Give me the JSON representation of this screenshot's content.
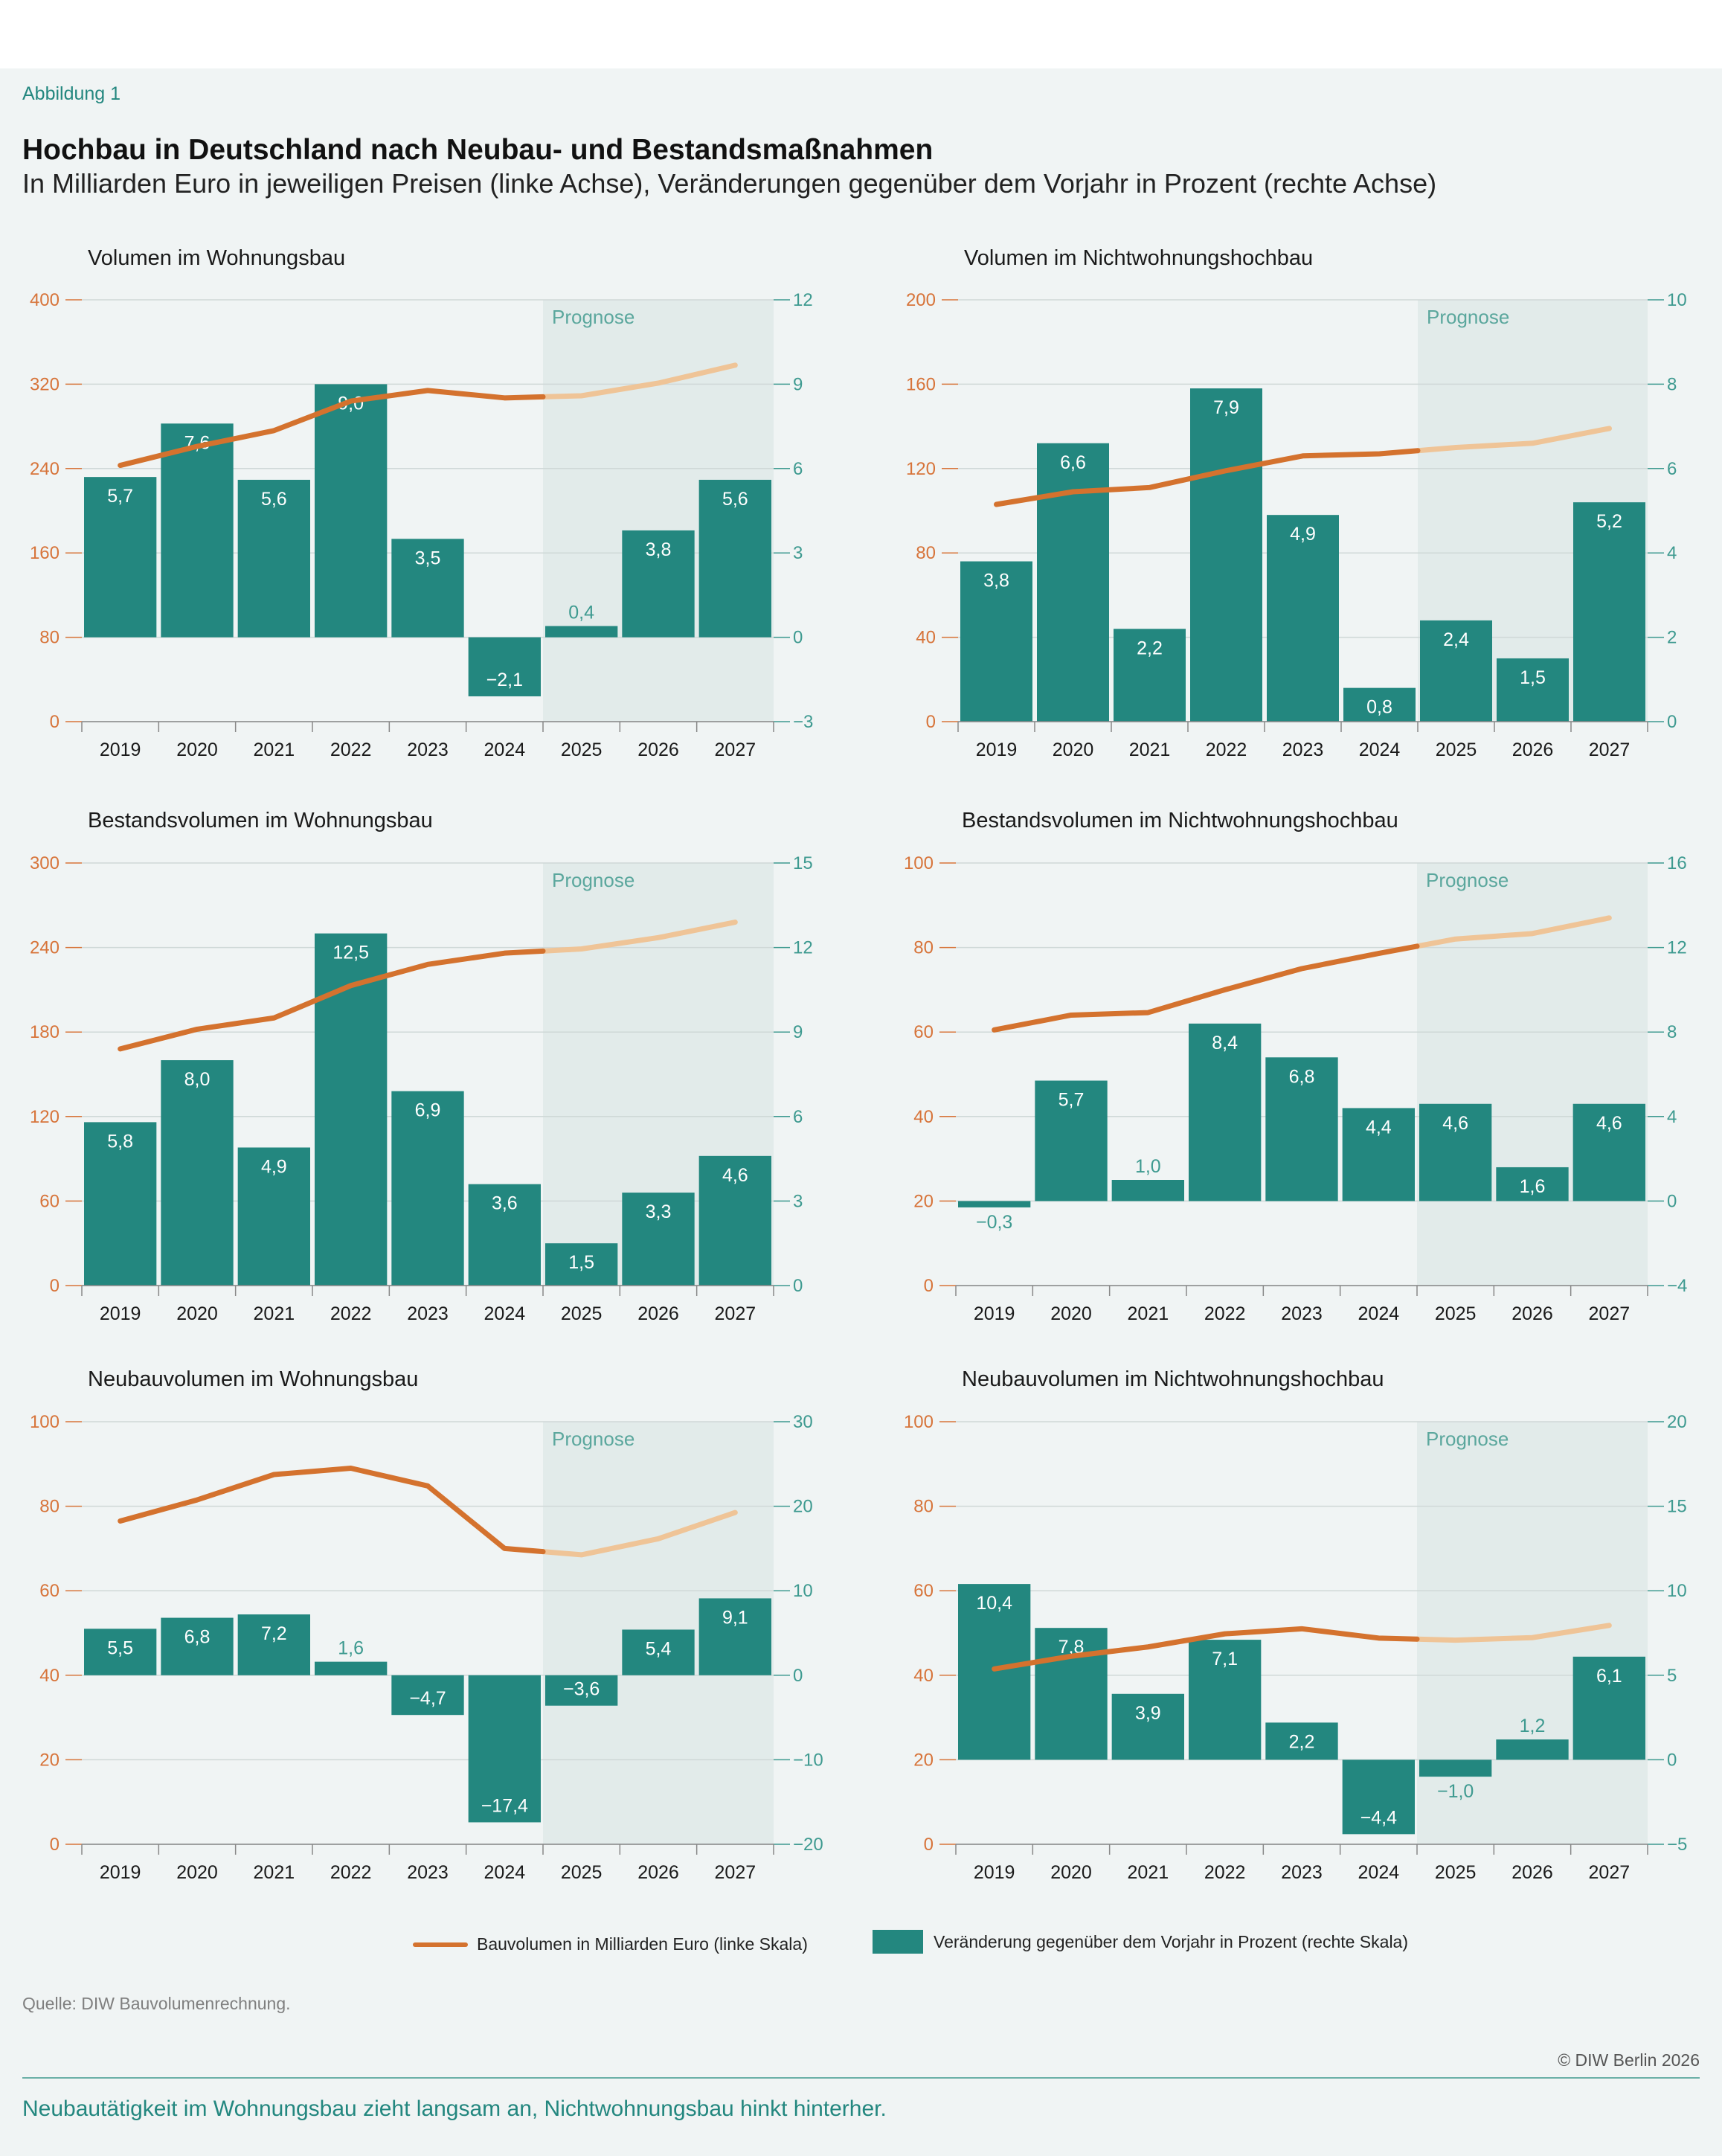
{
  "figure_label": "Abbildung 1",
  "title": "Hochbau in Deutschland nach Neubau- und Bestandsmaßnahmen",
  "subtitle": "In Milliarden Euro in jeweiligen Preisen (linke Achse), Veränderungen gegenüber dem Vorjahr in Prozent (rechte Achse)",
  "forecast_label": "Prognose",
  "legend": {
    "line_label": "Bauvolumen in Milliarden Euro (linke Skala)",
    "bar_label": "Veränderung gegenüber dem Vorjahr in Prozent (rechte Skala)"
  },
  "source": "Quelle: DIW Bauvolumenrechnung.",
  "copyright": "© DIW Berlin 2026",
  "footer": "Neubautätigkeit im Wohnungsbau zieht langsam an, Nichtwohnungsbau hinkt hinterher.",
  "colors": {
    "bar": "#23877f",
    "line": "#d4722e",
    "line_forecast": "#efc497",
    "forecast_bg": "#e2ebea",
    "left_axis": "#d7743a",
    "right_axis": "#3e9a90"
  },
  "chart_data": [
    {
      "type": "bar",
      "title": "Volumen im Wohnungsbau",
      "categories": [
        "2019",
        "2020",
        "2021",
        "2022",
        "2023",
        "2024",
        "2025",
        "2026",
        "2027"
      ],
      "forecast_from": "2025",
      "left_axis": {
        "min": 0,
        "max": 400,
        "ticks": [
          0,
          80,
          160,
          240,
          320,
          400
        ]
      },
      "right_axis": {
        "min": -3,
        "max": 12,
        "ticks": [
          -3,
          0,
          3,
          6,
          9,
          12
        ]
      },
      "bar_labels": [
        "5,7",
        "7,6",
        "5,6",
        "9,0",
        "3,5",
        "−2,1",
        "0,4",
        "3,8",
        "5,6"
      ],
      "series": [
        {
          "name": "Veränderung gegenüber dem Vorjahr in Prozent (rechte Skala)",
          "axis": "right",
          "kind": "bar",
          "values": [
            5.7,
            7.6,
            5.6,
            9.0,
            3.5,
            -2.1,
            0.4,
            3.8,
            5.6
          ]
        },
        {
          "name": "Bauvolumen in Milliarden Euro (linke Skala)",
          "axis": "left",
          "kind": "line",
          "values": [
            243,
            261,
            276,
            304,
            314,
            307,
            309,
            321,
            338
          ]
        }
      ]
    },
    {
      "type": "bar",
      "title": "Volumen im Nichtwohnungshochbau",
      "categories": [
        "2019",
        "2020",
        "2021",
        "2022",
        "2023",
        "2024",
        "2025",
        "2026",
        "2027"
      ],
      "forecast_from": "2025",
      "left_axis": {
        "min": 0,
        "max": 200,
        "ticks": [
          0,
          40,
          80,
          120,
          160,
          200
        ]
      },
      "right_axis": {
        "min": 0,
        "max": 10,
        "ticks": [
          0,
          2,
          4,
          6,
          8,
          10
        ]
      },
      "bar_labels": [
        "3,8",
        "6,6",
        "2,2",
        "7,9",
        "4,9",
        "0,8",
        "2,4",
        "1,5",
        "5,2"
      ],
      "series": [
        {
          "name": "Veränderung gegenüber dem Vorjahr in Prozent (rechte Skala)",
          "axis": "right",
          "kind": "bar",
          "values": [
            3.8,
            6.6,
            2.2,
            7.9,
            4.9,
            0.8,
            2.4,
            1.5,
            5.2
          ]
        },
        {
          "name": "Bauvolumen in Milliarden Euro (linke Skala)",
          "axis": "left",
          "kind": "line",
          "values": [
            103,
            109,
            111,
            119,
            126,
            127,
            130,
            132,
            139
          ]
        }
      ]
    },
    {
      "type": "bar",
      "title": "Bestandsvolumen im Wohnungsbau",
      "categories": [
        "2019",
        "2020",
        "2021",
        "2022",
        "2023",
        "2024",
        "2025",
        "2026",
        "2027"
      ],
      "forecast_from": "2025",
      "left_axis": {
        "min": 0,
        "max": 300,
        "ticks": [
          0,
          60,
          120,
          180,
          240,
          300
        ]
      },
      "right_axis": {
        "min": 0,
        "max": 15,
        "ticks": [
          0,
          3,
          6,
          9,
          12,
          15
        ]
      },
      "bar_labels": [
        "5,8",
        "8,0",
        "4,9",
        "12,5",
        "6,9",
        "3,6",
        "1,5",
        "3,3",
        "4,6"
      ],
      "series": [
        {
          "name": "Veränderung gegenüber dem Vorjahr in Prozent (rechte Skala)",
          "axis": "right",
          "kind": "bar",
          "values": [
            5.8,
            8.0,
            4.9,
            12.5,
            6.9,
            3.6,
            1.5,
            3.3,
            4.6
          ]
        },
        {
          "name": "Bauvolumen in Milliarden Euro (linke Skala)",
          "axis": "left",
          "kind": "line",
          "values": [
            168,
            182,
            190,
            213,
            228,
            236,
            239,
            247,
            258
          ]
        }
      ]
    },
    {
      "type": "bar",
      "title": "Bestandsvolumen im Nichtwohnungshochbau",
      "categories": [
        "2019",
        "2020",
        "2021",
        "2022",
        "2023",
        "2024",
        "2025",
        "2026",
        "2027"
      ],
      "forecast_from": "2025",
      "left_axis": {
        "min": 0,
        "max": 100,
        "ticks": [
          0,
          20,
          40,
          60,
          80,
          100
        ]
      },
      "right_axis": {
        "min": -4,
        "max": 16,
        "ticks": [
          -4,
          0,
          4,
          8,
          12,
          16
        ]
      },
      "bar_labels": [
        "−0,3",
        "5,7",
        "1,0",
        "8,4",
        "6,8",
        "4,4",
        "4,6",
        "1,6",
        "4,6"
      ],
      "series": [
        {
          "name": "Veränderung gegenüber dem Vorjahr in Prozent (rechte Skala)",
          "axis": "right",
          "kind": "bar",
          "values": [
            -0.3,
            5.7,
            1.0,
            8.4,
            6.8,
            4.4,
            4.6,
            1.6,
            4.6
          ]
        },
        {
          "name": "Bauvolumen in Milliarden Euro (linke Skala)",
          "axis": "left",
          "kind": "line",
          "values": [
            60.5,
            64,
            64.6,
            70,
            75,
            78.6,
            82,
            83.3,
            87
          ]
        }
      ]
    },
    {
      "type": "bar",
      "title": "Neubauvolumen im Wohnungsbau",
      "categories": [
        "2019",
        "2020",
        "2021",
        "2022",
        "2023",
        "2024",
        "2025",
        "2026",
        "2027"
      ],
      "forecast_from": "2025",
      "left_axis": {
        "min": 0,
        "max": 100,
        "ticks": [
          0,
          20,
          40,
          60,
          80,
          100
        ]
      },
      "right_axis": {
        "min": -20,
        "max": 30,
        "ticks": [
          -20,
          -10,
          0,
          10,
          20,
          30
        ]
      },
      "bar_labels": [
        "5,5",
        "6,8",
        "7,2",
        "1,6",
        "−4,7",
        "−17,4",
        "−3,6",
        "5,4",
        "9,1"
      ],
      "series": [
        {
          "name": "Veränderung gegenüber dem Vorjahr in Prozent (rechte Skala)",
          "axis": "right",
          "kind": "bar",
          "values": [
            5.5,
            6.8,
            7.2,
            1.6,
            -4.7,
            -17.4,
            -3.6,
            5.4,
            9.1
          ]
        },
        {
          "name": "Bauvolumen in Milliarden Euro (linke Skala)",
          "axis": "left",
          "kind": "line",
          "values": [
            76.5,
            81.5,
            87.5,
            89,
            84.8,
            70,
            68.5,
            72.3,
            78.5
          ]
        }
      ]
    },
    {
      "type": "bar",
      "title": "Neubauvolumen im Nichtwohnungshochbau",
      "categories": [
        "2019",
        "2020",
        "2021",
        "2022",
        "2023",
        "2024",
        "2025",
        "2026",
        "2027"
      ],
      "forecast_from": "2025",
      "left_axis": {
        "min": 0,
        "max": 100,
        "ticks": [
          0,
          20,
          40,
          60,
          80,
          100
        ]
      },
      "right_axis": {
        "min": -5,
        "max": 20,
        "ticks": [
          -5,
          0,
          5,
          10,
          15,
          20
        ]
      },
      "bar_labels": [
        "10,4",
        "7,8",
        "3,9",
        "7,1",
        "2,2",
        "−4,4",
        "−1,0",
        "1,2",
        "6,1"
      ],
      "series": [
        {
          "name": "Veränderung gegenüber dem Vorjahr in Prozent (rechte Skala)",
          "axis": "right",
          "kind": "bar",
          "values": [
            10.4,
            7.8,
            3.9,
            7.1,
            2.2,
            -4.4,
            -1.0,
            1.2,
            6.1
          ]
        },
        {
          "name": "Bauvolumen in Milliarden Euro (linke Skala)",
          "axis": "left",
          "kind": "line",
          "values": [
            41.5,
            44.5,
            46.7,
            49.8,
            51,
            48.8,
            48.3,
            48.9,
            51.8
          ]
        }
      ]
    }
  ]
}
